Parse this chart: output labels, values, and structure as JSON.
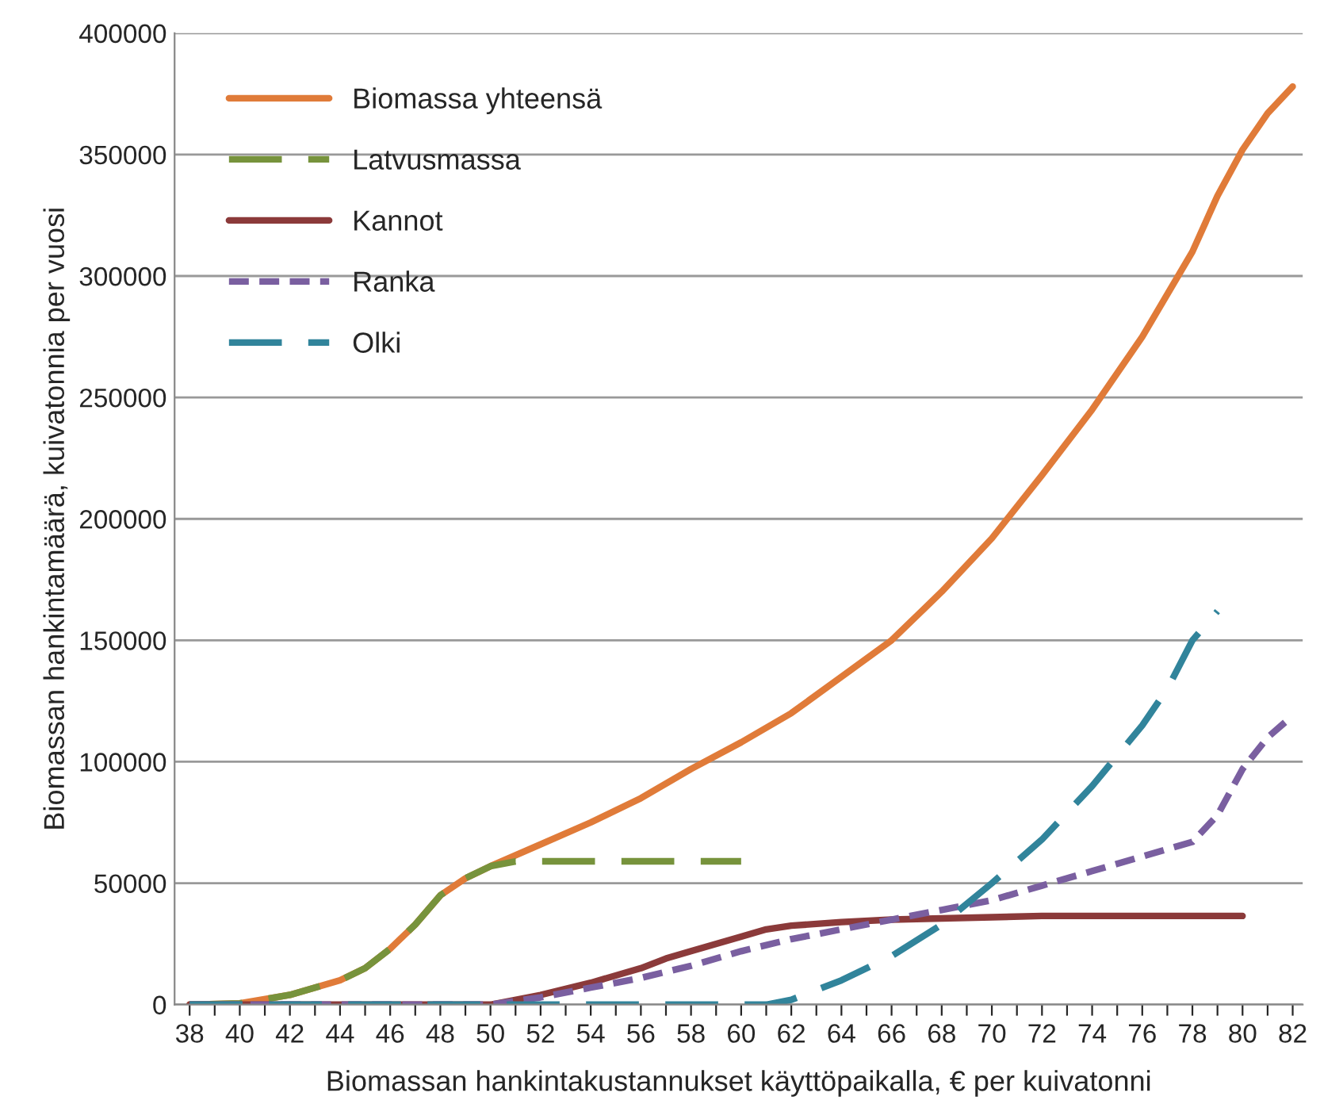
{
  "chart_data": {
    "type": "line",
    "xlabel": "Biomassan hankintakustannukset käyttöpaikalla, € per kuivatonni",
    "ylabel": "Biomassan hankintamäärä, kuivatonnia per vuosi",
    "xlim": [
      37.4,
      82.4
    ],
    "xticks": [
      38,
      {
        "value": 39,
        "label": null
      },
      40,
      {
        "value": 41,
        "label": null
      },
      42,
      {
        "value": 43,
        "label": null
      },
      44,
      {
        "value": 45,
        "label": null
      },
      46,
      {
        "value": 47,
        "label": null
      },
      48,
      {
        "value": 49,
        "label": null
      },
      50,
      {
        "value": 51,
        "label": null
      },
      52,
      {
        "value": 53,
        "label": null
      },
      54,
      {
        "value": 55,
        "label": null
      },
      56,
      {
        "value": 57,
        "label": null
      },
      58,
      {
        "value": 59,
        "label": null
      },
      60,
      {
        "value": 61,
        "label": null
      },
      62,
      {
        "value": 63,
        "label": null
      },
      64,
      {
        "value": 65,
        "label": null
      },
      66,
      {
        "value": 67,
        "label": null
      },
      68,
      {
        "value": 69,
        "label": null
      },
      70,
      {
        "value": 71,
        "label": null
      },
      72,
      {
        "value": 73,
        "label": null
      },
      74,
      {
        "value": 75,
        "label": null
      },
      76,
      {
        "value": 77,
        "label": null
      },
      78,
      {
        "value": 79,
        "label": null
      },
      80,
      {
        "value": 81,
        "label": null
      },
      82
    ],
    "ylim": [
      0,
      400000
    ],
    "yticks": [
      0,
      50000,
      100000,
      150000,
      200000,
      250000,
      300000,
      350000,
      400000
    ],
    "grid": "y",
    "legend": "top left",
    "series": [
      {
        "name": "Biomassa yhteensä",
        "color": "#e07b39",
        "line_style": "solid",
        "x": [
          38,
          40,
          42,
          44,
          45,
          46,
          47,
          48,
          49,
          50,
          52,
          54,
          56,
          58,
          60,
          62,
          64,
          66,
          68,
          70,
          72,
          74,
          76,
          78,
          79,
          80,
          81,
          82
        ],
        "values": [
          0,
          500,
          4000,
          10000,
          15000,
          23000,
          33000,
          45000,
          52000,
          57000,
          66000,
          75000,
          85000,
          97000,
          108000,
          120000,
          135000,
          150000,
          170000,
          192000,
          218000,
          245000,
          275000,
          310000,
          333000,
          352000,
          367000,
          378000
        ]
      },
      {
        "name": "Latvusmassa",
        "color": "#77933c",
        "line_style": "dashed",
        "x": [
          38,
          40,
          42,
          44,
          45,
          46,
          47,
          48,
          49,
          50,
          51,
          60
        ],
        "values": [
          0,
          500,
          4000,
          10000,
          15000,
          23000,
          33000,
          45000,
          52000,
          57000,
          59000,
          59000
        ]
      },
      {
        "name": "Kannot",
        "color": "#8b3a3a",
        "line_style": "solid",
        "x": [
          38,
          50,
          52,
          54,
          56,
          57,
          58,
          60,
          61,
          62,
          64,
          66,
          68,
          70,
          72,
          80
        ],
        "values": [
          0,
          0,
          4000,
          9000,
          15000,
          19000,
          22000,
          28000,
          31000,
          32500,
          34000,
          35000,
          35500,
          36000,
          36500,
          36500
        ]
      },
      {
        "name": "Ranka",
        "color": "#7a5fa0",
        "line_style": "dotted",
        "x": [
          38,
          50,
          52,
          54,
          56,
          58,
          60,
          62,
          64,
          66,
          68,
          70,
          72,
          74,
          76,
          78,
          79,
          80,
          81,
          82
        ],
        "values": [
          0,
          0,
          3000,
          7000,
          11000,
          16000,
          22000,
          27000,
          31000,
          35000,
          39000,
          43000,
          49000,
          55000,
          61000,
          67000,
          78000,
          97000,
          110000,
          119000
        ]
      },
      {
        "name": "Olki",
        "color": "#31849b",
        "line_style": "dashed",
        "x": [
          38,
          61,
          62,
          64,
          66,
          68,
          70,
          72,
          74,
          76,
          77,
          78,
          79
        ],
        "values": [
          0,
          0,
          2000,
          10000,
          20000,
          33000,
          50000,
          68000,
          90000,
          115000,
          130000,
          150000,
          162000
        ]
      }
    ]
  }
}
